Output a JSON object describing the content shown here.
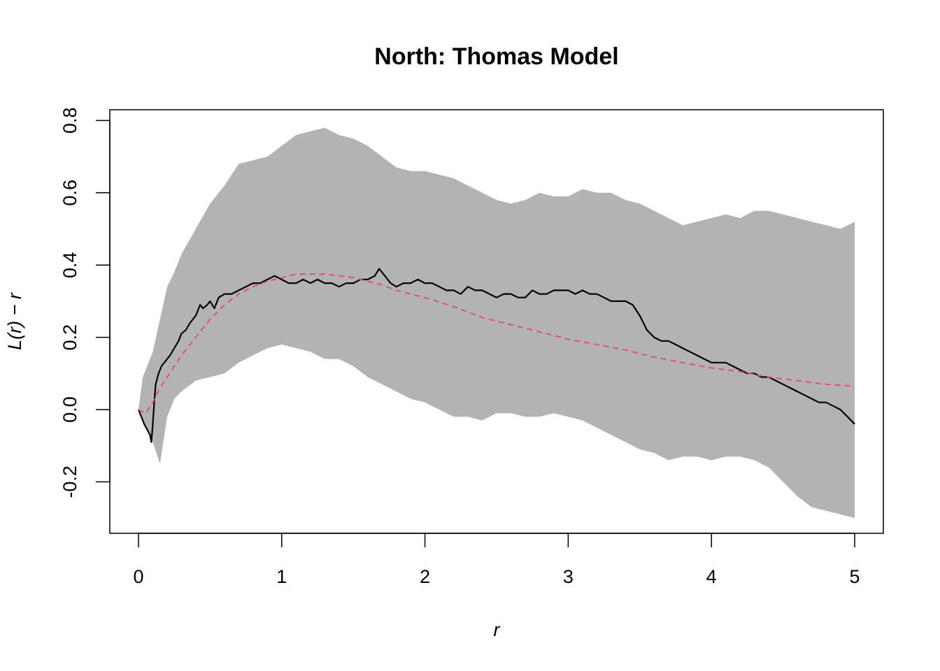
{
  "chart_data": {
    "type": "line",
    "title": "North: Thomas Model",
    "xlabel": "r",
    "ylabel": "L(r) − r",
    "xlim": [
      0,
      5
    ],
    "ylim": [
      -0.34,
      0.83
    ],
    "x_ticks": [
      "0",
      "1",
      "2",
      "3",
      "4",
      "5"
    ],
    "y_ticks": [
      "-0.2",
      "0.0",
      "0.2",
      "0.4",
      "0.6",
      "0.8"
    ],
    "grid": false,
    "legend": "none",
    "colors": {
      "envelope": "#b3b3b3",
      "observed": "#000000",
      "theoretical": "#df536b"
    },
    "envelope": {
      "x": [
        0,
        0.03,
        0.06,
        0.1,
        0.15,
        0.2,
        0.25,
        0.3,
        0.4,
        0.5,
        0.6,
        0.7,
        0.8,
        0.9,
        1.0,
        1.1,
        1.2,
        1.3,
        1.4,
        1.5,
        1.6,
        1.7,
        1.8,
        1.9,
        2.0,
        2.1,
        2.2,
        2.3,
        2.4,
        2.5,
        2.6,
        2.7,
        2.8,
        2.9,
        3.0,
        3.1,
        3.2,
        3.3,
        3.4,
        3.5,
        3.6,
        3.7,
        3.8,
        3.9,
        4.0,
        4.1,
        4.2,
        4.3,
        4.4,
        4.5,
        4.6,
        4.7,
        4.8,
        4.9,
        5.0
      ],
      "upper": [
        0.0,
        0.09,
        0.12,
        0.16,
        0.25,
        0.34,
        0.38,
        0.43,
        0.5,
        0.57,
        0.62,
        0.68,
        0.69,
        0.7,
        0.73,
        0.76,
        0.77,
        0.78,
        0.76,
        0.75,
        0.73,
        0.7,
        0.67,
        0.66,
        0.66,
        0.65,
        0.64,
        0.62,
        0.6,
        0.58,
        0.57,
        0.58,
        0.6,
        0.59,
        0.59,
        0.61,
        0.6,
        0.6,
        0.58,
        0.57,
        0.55,
        0.53,
        0.51,
        0.52,
        0.53,
        0.54,
        0.53,
        0.55,
        0.55,
        0.54,
        0.53,
        0.52,
        0.51,
        0.5,
        0.52
      ],
      "lower": [
        0.0,
        -0.03,
        -0.05,
        -0.09,
        -0.15,
        -0.02,
        0.03,
        0.05,
        0.08,
        0.09,
        0.1,
        0.13,
        0.15,
        0.17,
        0.18,
        0.17,
        0.16,
        0.14,
        0.14,
        0.12,
        0.09,
        0.07,
        0.05,
        0.03,
        0.02,
        0.0,
        -0.02,
        -0.02,
        -0.03,
        -0.01,
        -0.01,
        -0.02,
        -0.02,
        -0.01,
        -0.02,
        -0.03,
        -0.05,
        -0.07,
        -0.09,
        -0.11,
        -0.12,
        -0.14,
        -0.13,
        -0.13,
        -0.14,
        -0.13,
        -0.13,
        -0.14,
        -0.16,
        -0.2,
        -0.24,
        -0.27,
        -0.28,
        -0.29,
        -0.3
      ]
    },
    "series": [
      {
        "x": [
          0,
          0.04,
          0.08,
          0.09,
          0.1,
          0.11,
          0.12,
          0.14,
          0.16,
          0.18,
          0.2,
          0.22,
          0.25,
          0.28,
          0.3,
          0.33,
          0.36,
          0.4,
          0.43,
          0.45,
          0.48,
          0.5,
          0.53,
          0.56,
          0.6,
          0.65,
          0.7,
          0.75,
          0.8,
          0.85,
          0.9,
          0.95,
          1.0,
          1.05,
          1.1,
          1.15,
          1.2,
          1.25,
          1.3,
          1.35,
          1.4,
          1.45,
          1.5,
          1.55,
          1.6,
          1.65,
          1.68,
          1.72,
          1.76,
          1.8,
          1.85,
          1.9,
          1.95,
          2.0,
          2.05,
          2.1,
          2.15,
          2.2,
          2.25,
          2.3,
          2.35,
          2.4,
          2.45,
          2.5,
          2.55,
          2.6,
          2.65,
          2.7,
          2.75,
          2.8,
          2.85,
          2.9,
          2.95,
          3.0,
          3.05,
          3.1,
          3.15,
          3.2,
          3.25,
          3.3,
          3.35,
          3.4,
          3.45,
          3.5,
          3.55,
          3.6,
          3.65,
          3.7,
          3.75,
          3.8,
          3.85,
          3.9,
          3.95,
          4.0,
          4.05,
          4.1,
          4.15,
          4.2,
          4.25,
          4.3,
          4.35,
          4.4,
          4.45,
          4.5,
          4.55,
          4.6,
          4.65,
          4.7,
          4.75,
          4.8,
          4.85,
          4.9,
          4.95,
          5.0
        ],
        "values": [
          0.0,
          -0.04,
          -0.07,
          -0.09,
          -0.04,
          0.02,
          0.07,
          0.1,
          0.12,
          0.13,
          0.14,
          0.15,
          0.17,
          0.19,
          0.21,
          0.22,
          0.24,
          0.26,
          0.29,
          0.28,
          0.29,
          0.3,
          0.28,
          0.31,
          0.32,
          0.32,
          0.33,
          0.34,
          0.35,
          0.35,
          0.36,
          0.37,
          0.36,
          0.35,
          0.35,
          0.36,
          0.35,
          0.36,
          0.35,
          0.35,
          0.34,
          0.35,
          0.35,
          0.36,
          0.36,
          0.37,
          0.39,
          0.37,
          0.35,
          0.34,
          0.35,
          0.35,
          0.36,
          0.35,
          0.35,
          0.34,
          0.33,
          0.33,
          0.32,
          0.34,
          0.33,
          0.33,
          0.32,
          0.31,
          0.32,
          0.32,
          0.31,
          0.31,
          0.33,
          0.32,
          0.32,
          0.33,
          0.33,
          0.33,
          0.32,
          0.33,
          0.32,
          0.32,
          0.31,
          0.3,
          0.3,
          0.3,
          0.29,
          0.26,
          0.22,
          0.2,
          0.19,
          0.19,
          0.18,
          0.17,
          0.16,
          0.15,
          0.14,
          0.13,
          0.13,
          0.13,
          0.12,
          0.11,
          0.1,
          0.1,
          0.09,
          0.09,
          0.08,
          0.07,
          0.06,
          0.05,
          0.04,
          0.03,
          0.02,
          0.02,
          0.01,
          0.0,
          -0.02,
          -0.04
        ]
      },
      {
        "x": [
          0,
          0.05,
          0.1,
          0.15,
          0.2,
          0.25,
          0.3,
          0.4,
          0.5,
          0.6,
          0.7,
          0.8,
          0.9,
          1.0,
          1.1,
          1.2,
          1.3,
          1.4,
          1.5,
          1.6,
          1.7,
          1.8,
          1.9,
          2.0,
          2.2,
          2.4,
          2.6,
          2.8,
          3.0,
          3.2,
          3.4,
          3.6,
          3.8,
          4.0,
          4.2,
          4.4,
          4.6,
          4.8,
          5.0
        ],
        "values": [
          0.0,
          -0.01,
          0.02,
          0.06,
          0.09,
          0.12,
          0.15,
          0.2,
          0.25,
          0.29,
          0.32,
          0.34,
          0.355,
          0.365,
          0.375,
          0.375,
          0.375,
          0.37,
          0.365,
          0.355,
          0.345,
          0.33,
          0.32,
          0.31,
          0.285,
          0.255,
          0.235,
          0.215,
          0.195,
          0.18,
          0.165,
          0.145,
          0.13,
          0.115,
          0.105,
          0.09,
          0.08,
          0.07,
          0.065
        ]
      }
    ]
  }
}
